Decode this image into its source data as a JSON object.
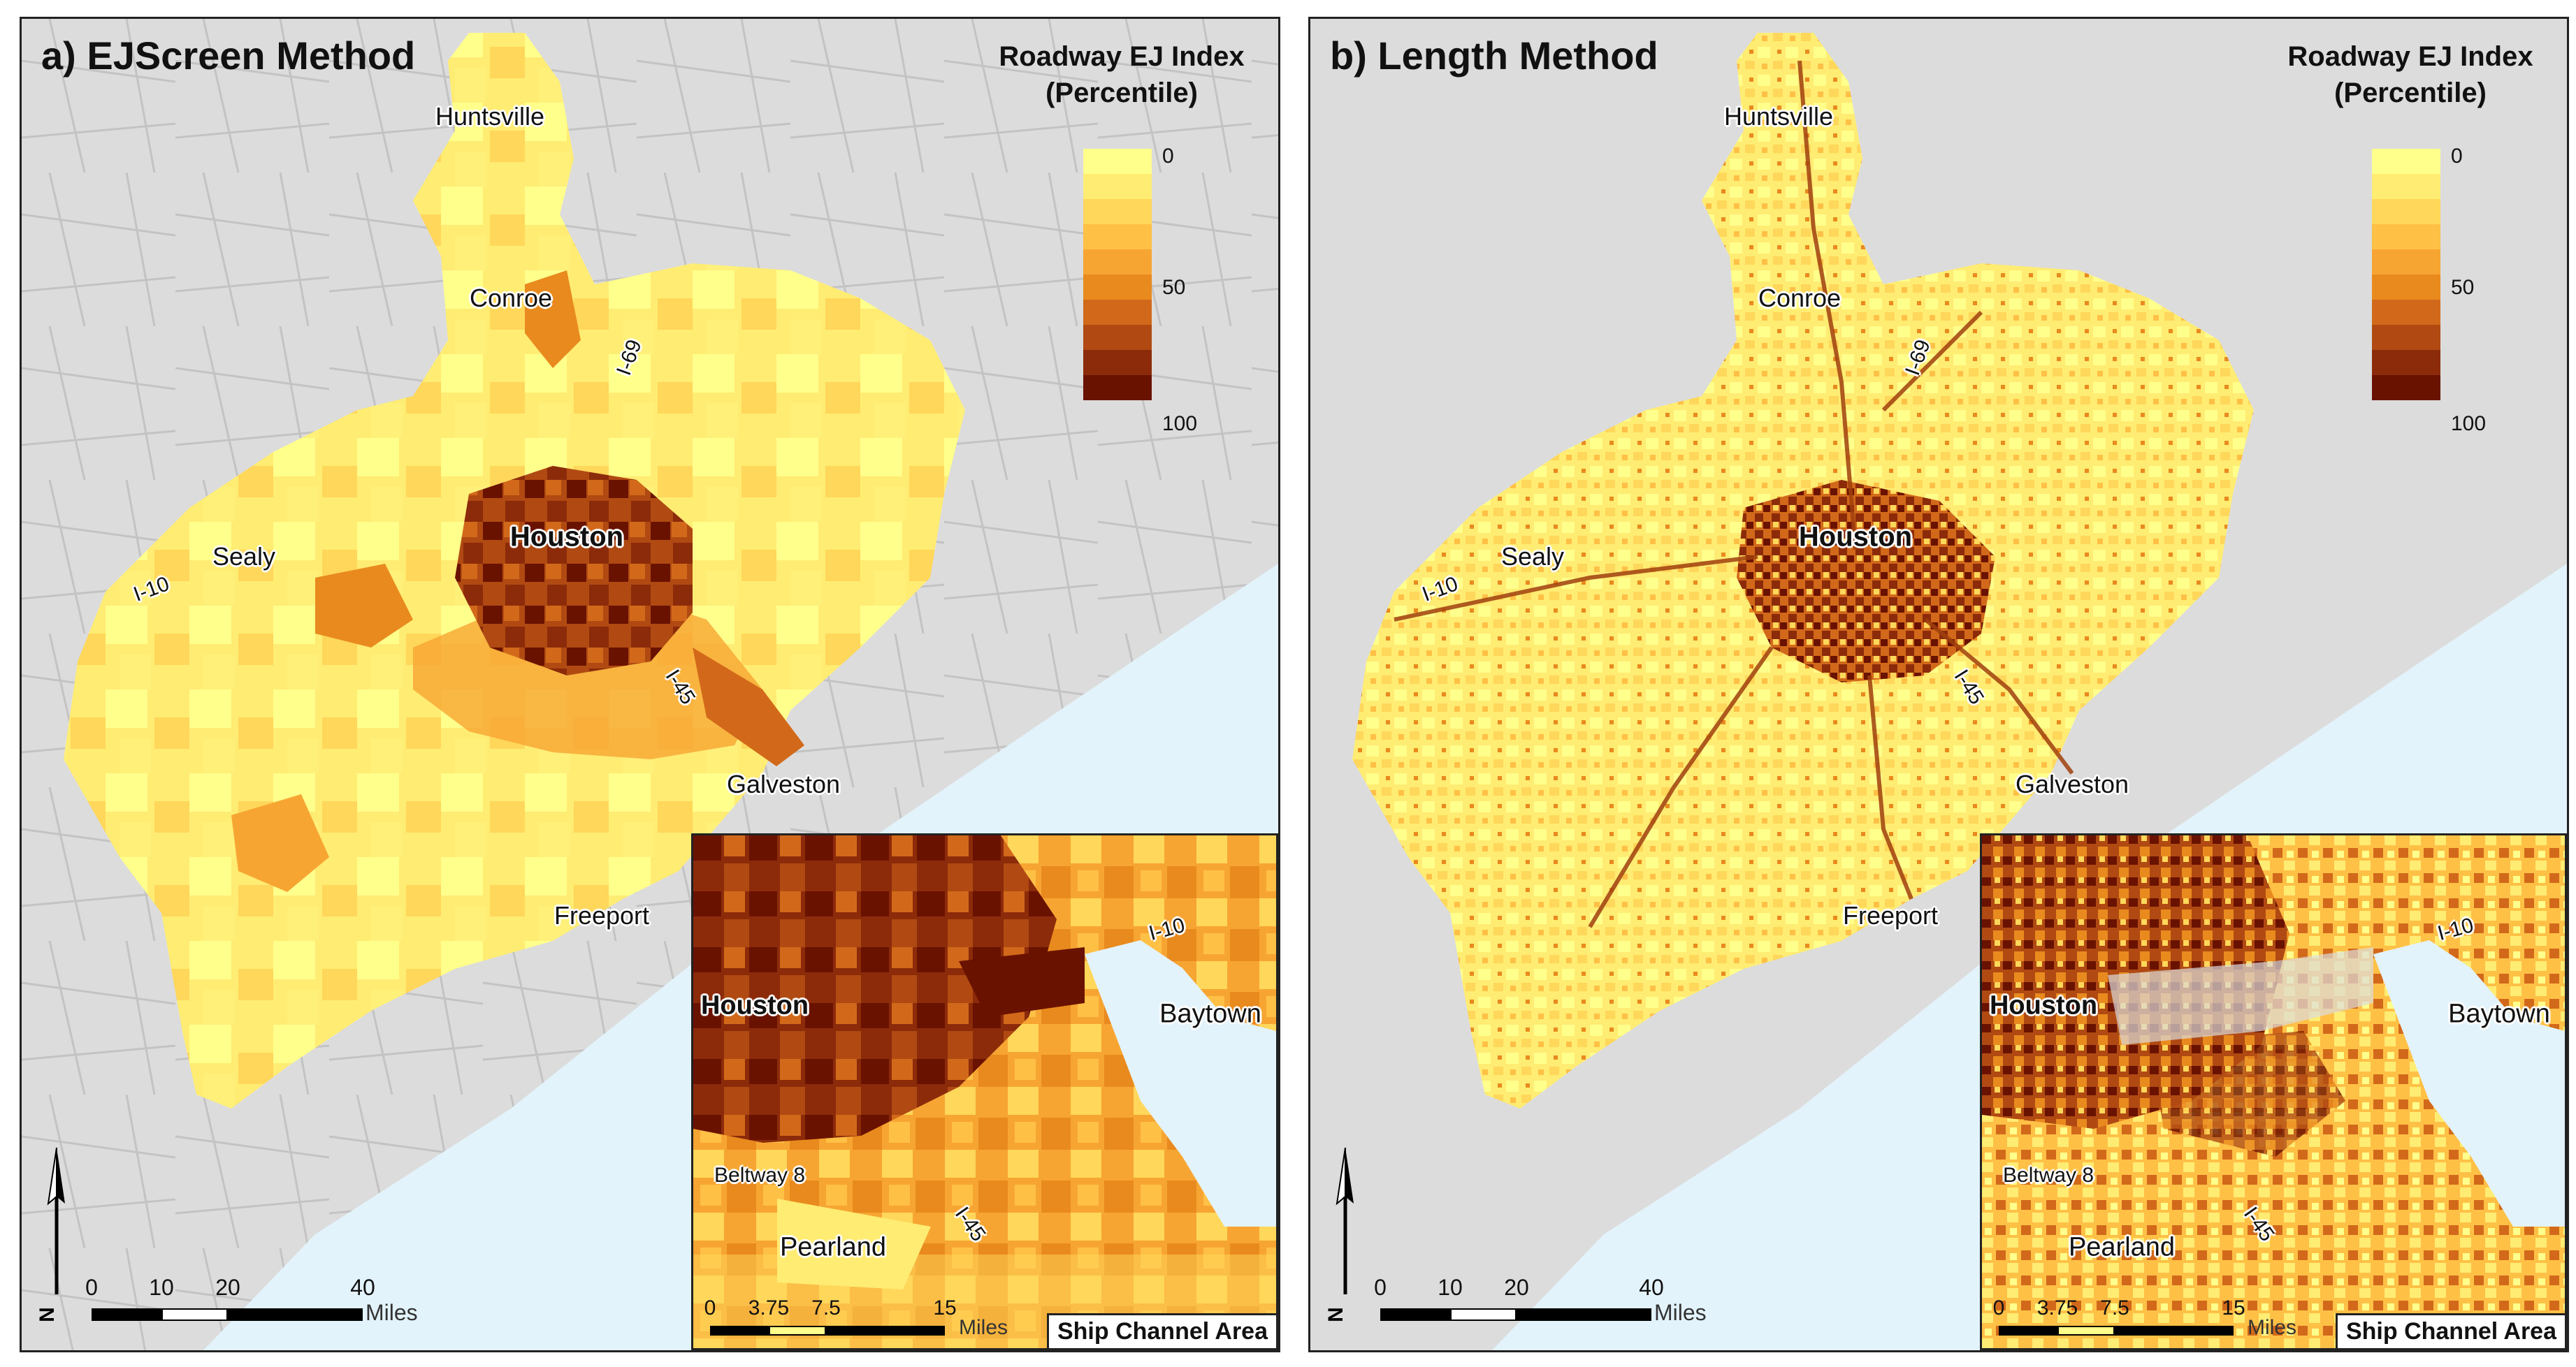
{
  "colors": {
    "ramp": [
      "#ffff8c",
      "#ffec73",
      "#ffd75a",
      "#ffc046",
      "#f7a532",
      "#e98a1e",
      "#d2691a",
      "#b04a12",
      "#8c2b0a",
      "#6a1200"
    ],
    "water": "#e3f3fb",
    "land_outside": "#dcdcdc",
    "roads": "#bcbcbc"
  },
  "panels": [
    {
      "title": "a) EJScreen Method",
      "legend": {
        "title_line1": "Roadway EJ Index",
        "title_line2": "(Percentile)",
        "tick_low": "0",
        "tick_mid": "50",
        "tick_high": "100"
      },
      "cities": {
        "huntsville": "Huntsville",
        "conroe": "Conroe",
        "houston": "Houston",
        "sealy": "Sealy",
        "galveston": "Galveston",
        "freeport": "Freeport"
      },
      "highways": {
        "i69": "I-69",
        "i10": "I-10",
        "i45": "I-45"
      },
      "scale": {
        "t0": "0",
        "t1": "10",
        "t2": "20",
        "t3": "40",
        "units": "Miles"
      },
      "north": "N",
      "inset": {
        "caption": "Ship Channel Area",
        "cities": {
          "houston": "Houston",
          "baytown": "Baytown",
          "pearland": "Pearland"
        },
        "highways": {
          "i10": "I-10",
          "beltway": "Beltway 8",
          "i45": "I-45"
        },
        "scale": {
          "t0": "0",
          "t1": "3.75",
          "t2": "7.5",
          "t3": "15",
          "units": "Miles"
        }
      }
    },
    {
      "title": "b) Length Method",
      "legend": {
        "title_line1": "Roadway EJ Index",
        "title_line2": "(Percentile)",
        "tick_low": "0",
        "tick_mid": "50",
        "tick_high": "100"
      },
      "cities": {
        "huntsville": "Huntsville",
        "conroe": "Conroe",
        "houston": "Houston",
        "sealy": "Sealy",
        "galveston": "Galveston",
        "freeport": "Freeport"
      },
      "highways": {
        "i69": "I-69",
        "i10": "I-10",
        "i45": "I-45"
      },
      "scale": {
        "t0": "0",
        "t1": "10",
        "t2": "20",
        "t3": "40",
        "units": "Miles"
      },
      "north": "N",
      "inset": {
        "caption": "Ship Channel Area",
        "cities": {
          "houston": "Houston",
          "baytown": "Baytown",
          "pearland": "Pearland"
        },
        "highways": {
          "i10": "I-10",
          "beltway": "Beltway 8",
          "i45": "I-45"
        },
        "scale": {
          "t0": "0",
          "t1": "3.75",
          "t2": "7.5",
          "t3": "15",
          "units": "Miles"
        }
      }
    }
  ]
}
